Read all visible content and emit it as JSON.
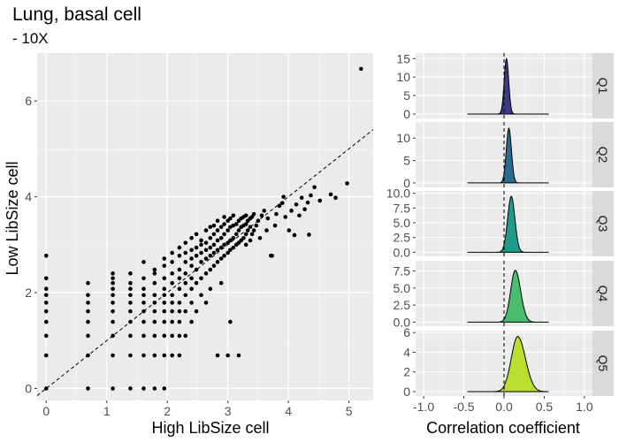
{
  "chart_data": [
    {
      "type": "scatter",
      "title": "Lung, basal cell",
      "subtitle": "- 10X",
      "xlabel": "High LibSize cell",
      "ylabel": "Low LibSize cell",
      "xlim": [
        -0.15,
        5.4
      ],
      "ylim": [
        -0.25,
        7.0
      ],
      "x_ticks": [
        "0",
        "1",
        "2",
        "3",
        "4",
        "5"
      ],
      "y_ticks": [
        "0",
        "2",
        "4",
        "6"
      ],
      "grid": true,
      "reference_line": {
        "type": "identity",
        "slope": 1,
        "intercept": 0,
        "style": "dashed"
      },
      "points": [
        [
          0,
          0
        ],
        [
          0,
          0.69
        ],
        [
          0,
          1.1
        ],
        [
          0,
          1.39
        ],
        [
          0,
          1.61
        ],
        [
          0,
          1.79
        ],
        [
          0,
          1.95
        ],
        [
          0,
          2.08
        ],
        [
          0,
          2.3
        ],
        [
          0,
          2.77
        ],
        [
          0.69,
          0
        ],
        [
          0.69,
          0.69
        ],
        [
          0.69,
          1.1
        ],
        [
          0.69,
          1.39
        ],
        [
          0.69,
          1.61
        ],
        [
          0.69,
          1.79
        ],
        [
          0.69,
          1.95
        ],
        [
          0.69,
          2.2
        ],
        [
          1.1,
          0
        ],
        [
          1.1,
          0.69
        ],
        [
          1.1,
          1.1
        ],
        [
          1.1,
          1.39
        ],
        [
          1.1,
          1.61
        ],
        [
          1.1,
          1.79
        ],
        [
          1.1,
          1.95
        ],
        [
          1.1,
          2.08
        ],
        [
          1.1,
          2.2
        ],
        [
          1.1,
          2.3
        ],
        [
          1.1,
          2.4
        ],
        [
          1.39,
          0
        ],
        [
          1.39,
          0.69
        ],
        [
          1.39,
          1.1
        ],
        [
          1.39,
          1.39
        ],
        [
          1.39,
          1.61
        ],
        [
          1.39,
          1.79
        ],
        [
          1.39,
          1.95
        ],
        [
          1.39,
          2.08
        ],
        [
          1.39,
          2.2
        ],
        [
          1.39,
          2.4
        ],
        [
          1.61,
          0
        ],
        [
          1.61,
          0.69
        ],
        [
          1.61,
          1.1
        ],
        [
          1.61,
          1.39
        ],
        [
          1.61,
          1.61
        ],
        [
          1.61,
          1.79
        ],
        [
          1.61,
          1.95
        ],
        [
          1.61,
          2.08
        ],
        [
          1.61,
          2.3
        ],
        [
          1.61,
          2.64
        ],
        [
          1.79,
          0
        ],
        [
          1.79,
          0.69
        ],
        [
          1.79,
          1.1
        ],
        [
          1.79,
          1.39
        ],
        [
          1.79,
          1.61
        ],
        [
          1.79,
          1.79
        ],
        [
          1.79,
          1.95
        ],
        [
          1.79,
          2.2
        ],
        [
          1.79,
          2.4
        ],
        [
          1.79,
          2.48
        ],
        [
          1.95,
          0
        ],
        [
          1.95,
          0.69
        ],
        [
          1.95,
          1.1
        ],
        [
          1.95,
          1.39
        ],
        [
          1.95,
          1.61
        ],
        [
          1.95,
          1.79
        ],
        [
          1.95,
          1.95
        ],
        [
          1.95,
          2.08
        ],
        [
          1.95,
          2.3
        ],
        [
          1.95,
          2.56
        ],
        [
          1.95,
          2.71
        ],
        [
          2.08,
          0.69
        ],
        [
          2.08,
          1.1
        ],
        [
          2.08,
          1.39
        ],
        [
          2.08,
          1.61
        ],
        [
          2.08,
          1.79
        ],
        [
          2.08,
          1.95
        ],
        [
          2.08,
          2.2
        ],
        [
          2.08,
          2.4
        ],
        [
          2.08,
          2.64
        ],
        [
          2.08,
          2.83
        ],
        [
          2.2,
          0.69
        ],
        [
          2.2,
          1.1
        ],
        [
          2.2,
          1.39
        ],
        [
          2.2,
          1.61
        ],
        [
          2.2,
          1.79
        ],
        [
          2.2,
          2.08
        ],
        [
          2.2,
          2.3
        ],
        [
          2.2,
          2.48
        ],
        [
          2.2,
          2.77
        ],
        [
          2.2,
          2.94
        ],
        [
          2.3,
          1.1
        ],
        [
          2.3,
          1.61
        ],
        [
          2.3,
          1.95
        ],
        [
          2.3,
          2.2
        ],
        [
          2.3,
          2.4
        ],
        [
          2.3,
          2.64
        ],
        [
          2.3,
          2.83
        ],
        [
          2.3,
          3.04
        ],
        [
          2.4,
          1.39
        ],
        [
          2.4,
          1.79
        ],
        [
          2.4,
          2.08
        ],
        [
          2.4,
          2.3
        ],
        [
          2.4,
          2.56
        ],
        [
          2.4,
          2.71
        ],
        [
          2.4,
          2.89
        ],
        [
          2.4,
          3.14
        ],
        [
          2.48,
          1.61
        ],
        [
          2.48,
          2.2
        ],
        [
          2.48,
          2.48
        ],
        [
          2.48,
          2.77
        ],
        [
          2.48,
          2.94
        ],
        [
          2.48,
          3.22
        ],
        [
          2.56,
          1.95
        ],
        [
          2.56,
          2.3
        ],
        [
          2.56,
          2.64
        ],
        [
          2.56,
          2.83
        ],
        [
          2.56,
          3.0
        ],
        [
          2.56,
          3.09
        ],
        [
          2.64,
          1.79
        ],
        [
          2.64,
          2.4
        ],
        [
          2.64,
          2.71
        ],
        [
          2.64,
          2.89
        ],
        [
          2.64,
          3.04
        ],
        [
          2.64,
          3.3
        ],
        [
          2.71,
          2.08
        ],
        [
          2.71,
          2.48
        ],
        [
          2.71,
          2.77
        ],
        [
          2.71,
          2.94
        ],
        [
          2.71,
          3.14
        ],
        [
          2.71,
          3.37
        ],
        [
          2.77,
          2.56
        ],
        [
          2.77,
          2.83
        ],
        [
          2.77,
          3.0
        ],
        [
          2.77,
          3.22
        ],
        [
          2.77,
          3.4
        ],
        [
          2.83,
          0.69
        ],
        [
          2.83,
          2.64
        ],
        [
          2.83,
          2.89
        ],
        [
          2.83,
          3.09
        ],
        [
          2.83,
          3.3
        ],
        [
          2.83,
          3.5
        ],
        [
          2.89,
          2.2
        ],
        [
          2.89,
          2.71
        ],
        [
          2.89,
          2.94
        ],
        [
          2.89,
          3.14
        ],
        [
          2.89,
          3.37
        ],
        [
          2.94,
          2.77
        ],
        [
          2.94,
          3.0
        ],
        [
          2.94,
          3.22
        ],
        [
          2.94,
          3.43
        ],
        [
          2.94,
          3.58
        ],
        [
          3.0,
          0.69
        ],
        [
          3.0,
          2.83
        ],
        [
          3.0,
          3.04
        ],
        [
          3.0,
          3.3
        ],
        [
          3.0,
          3.5
        ],
        [
          3.04,
          1.39
        ],
        [
          3.04,
          2.89
        ],
        [
          3.04,
          3.09
        ],
        [
          3.04,
          3.37
        ],
        [
          3.04,
          3.55
        ],
        [
          3.09,
          2.94
        ],
        [
          3.09,
          3.14
        ],
        [
          3.09,
          3.4
        ],
        [
          3.09,
          3.61
        ],
        [
          3.14,
          3.0
        ],
        [
          3.14,
          3.22
        ],
        [
          3.14,
          3.43
        ],
        [
          3.18,
          0.69
        ],
        [
          3.18,
          3.04
        ],
        [
          3.18,
          3.3
        ],
        [
          3.18,
          3.5
        ],
        [
          3.22,
          3.09
        ],
        [
          3.22,
          3.37
        ],
        [
          3.22,
          3.55
        ],
        [
          3.26,
          3.14
        ],
        [
          3.26,
          3.4
        ],
        [
          3.26,
          3.58
        ],
        [
          3.3,
          3.0
        ],
        [
          3.3,
          3.22
        ],
        [
          3.3,
          3.43
        ],
        [
          3.3,
          3.61
        ],
        [
          3.33,
          3.3
        ],
        [
          3.33,
          3.5
        ],
        [
          3.37,
          3.09
        ],
        [
          3.37,
          3.37
        ],
        [
          3.37,
          3.55
        ],
        [
          3.4,
          3.22
        ],
        [
          3.4,
          3.58
        ],
        [
          3.43,
          3.3
        ],
        [
          3.43,
          3.64
        ],
        [
          3.47,
          3.4
        ],
        [
          3.5,
          3.5
        ],
        [
          3.53,
          3.14
        ],
        [
          3.56,
          3.61
        ],
        [
          3.6,
          3.71
        ],
        [
          3.64,
          3.3
        ],
        [
          3.66,
          3.55
        ],
        [
          3.71,
          2.77
        ],
        [
          3.73,
          2.77
        ],
        [
          3.78,
          3.4
        ],
        [
          3.8,
          3.64
        ],
        [
          3.85,
          3.81
        ],
        [
          3.9,
          3.87
        ],
        [
          3.92,
          4.0
        ],
        [
          3.95,
          3.58
        ],
        [
          4.01,
          3.3
        ],
        [
          4.05,
          3.71
        ],
        [
          4.1,
          3.2
        ],
        [
          4.13,
          3.84
        ],
        [
          4.18,
          3.61
        ],
        [
          4.22,
          3.98
        ],
        [
          4.27,
          3.74
        ],
        [
          4.32,
          3.88
        ],
        [
          4.34,
          3.21
        ],
        [
          4.37,
          4.03
        ],
        [
          4.43,
          4.2
        ],
        [
          4.52,
          3.92
        ],
        [
          4.7,
          4.05
        ],
        [
          4.78,
          3.98
        ],
        [
          4.97,
          4.28
        ],
        [
          5.2,
          6.67
        ]
      ]
    },
    {
      "type": "area",
      "facet_labels": [
        "Q1",
        "Q2",
        "Q3",
        "Q4",
        "Q5"
      ],
      "xlabel": "Correlation coefficient",
      "xlim": [
        -1.1,
        1.1
      ],
      "x_ticks": [
        "-1.0",
        "-0.5",
        "0.0",
        "0.5",
        "1.0"
      ],
      "reference_line": {
        "type": "vertical",
        "x": 0,
        "style": "dashed"
      },
      "grid": true,
      "panels": [
        {
          "label": "Q1",
          "fill": "#3f3a86",
          "peak_x": 0.03,
          "peak_density": 15.0,
          "width": 0.028,
          "skew": 1.0,
          "ylim": [
            -1.2,
            16.5
          ],
          "y_ticks": [
            "0",
            "5",
            "10",
            "15"
          ]
        },
        {
          "label": "Q2",
          "fill": "#2c6b8c",
          "peak_x": 0.06,
          "peak_density": 12.2,
          "width": 0.032,
          "skew": 1.0,
          "ylim": [
            -1.0,
            13.6
          ],
          "y_ticks": [
            "0",
            "5",
            "10"
          ]
        },
        {
          "label": "Q3",
          "fill": "#209b8a",
          "peak_x": 0.09,
          "peak_density": 9.5,
          "width": 0.045,
          "skew": 1.0,
          "ylim": [
            -0.7,
            10.4
          ],
          "y_ticks": [
            "0.0",
            "2.5",
            "5.0",
            "7.5",
            "10.0"
          ]
        },
        {
          "label": "Q4",
          "fill": "#49bd6d",
          "peak_x": 0.14,
          "peak_density": 7.6,
          "width": 0.058,
          "skew": 1.15,
          "ylim": [
            -0.6,
            9.0
          ],
          "y_ticks": [
            "0.0",
            "2.5",
            "5.0",
            "7.5"
          ]
        },
        {
          "label": "Q5",
          "fill": "#bbdd2e",
          "peak_x": 0.17,
          "peak_density": 5.6,
          "width": 0.08,
          "skew": 1.2,
          "ylim": [
            -0.45,
            6.2
          ],
          "y_ticks": [
            "0",
            "2",
            "4",
            "6"
          ]
        }
      ]
    }
  ]
}
